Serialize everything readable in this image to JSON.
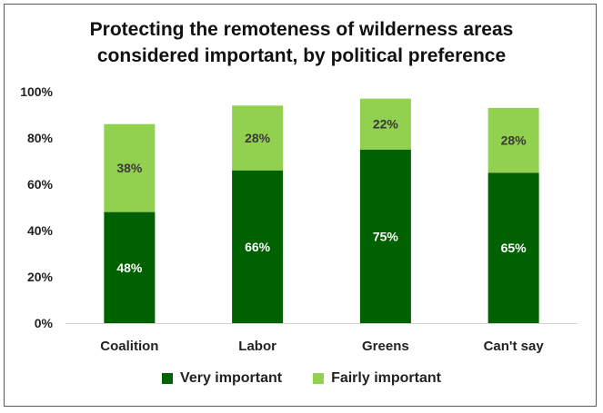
{
  "chart_data": {
    "type": "bar",
    "stacked": true,
    "title": [
      "Protecting the remoteness of wilderness areas",
      "considered important, by political preference"
    ],
    "xlabel": "",
    "ylabel": "",
    "categories": [
      "Coalition",
      "Labor",
      "Greens",
      "Can't say"
    ],
    "series": [
      {
        "name": "Very important",
        "values": [
          48,
          66,
          75,
          65
        ],
        "color": "#006100"
      },
      {
        "name": "Fairly important",
        "values": [
          38,
          28,
          22,
          28
        ],
        "color": "#92d050"
      }
    ],
    "ylim": [
      0,
      100
    ],
    "yticks": [
      "0%",
      "20%",
      "40%",
      "60%",
      "80%",
      "100%"
    ],
    "value_suffix": "%",
    "grid": false,
    "legend_position": "bottom"
  }
}
